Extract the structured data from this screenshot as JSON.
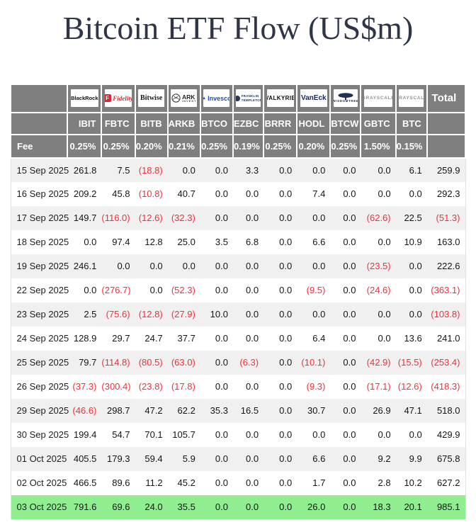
{
  "title": "Bitcoin ETF Flow (US$m)",
  "colors": {
    "title_navy": "#2f3547",
    "header_gray": "#7f7f7f",
    "stripe_gray": "#f0f0f0",
    "negative_red": "#fa2c37",
    "highlight_green": "#90ee90",
    "fidelity_red": "#d7282f",
    "invesco_blue": "#1a52bd",
    "vaneck_navy": "#16295e",
    "wisdomtree_navy": "#20304e",
    "grayscale_gray": "#8d9298"
  },
  "chart_data": {
    "type": "table",
    "title": "Bitcoin ETF Flow (US$m)",
    "fee_row_label": "Fee",
    "total_label": "Total",
    "providers": [
      {
        "name": "BlackRock",
        "logo_text": "BlackRock",
        "ticker": "IBIT",
        "fee": "0.25%",
        "style": "blackrock"
      },
      {
        "name": "Fidelity",
        "logo_text": "Fidelity",
        "ticker": "FBTC",
        "fee": "0.25%",
        "style": "fidelity"
      },
      {
        "name": "Bitwise",
        "logo_text": "Bitwise",
        "ticker": "BITB",
        "fee": "0.20%",
        "style": "bitwise"
      },
      {
        "name": "ARK Invest",
        "logo_text": "ARK",
        "logo_sub": "INVEST",
        "ticker": "ARKB",
        "fee": "0.21%",
        "style": "ark"
      },
      {
        "name": "Invesco",
        "logo_text": "Invesco",
        "ticker": "BTCO",
        "fee": "0.25%",
        "style": "invesco"
      },
      {
        "name": "Franklin Templeton",
        "logo_text": "FRANKLIN",
        "logo_sub": "TEMPLETON",
        "ticker": "EZBC",
        "fee": "0.19%",
        "style": "franklin"
      },
      {
        "name": "Valkyrie",
        "logo_text": "VALKYRIE",
        "ticker": "BRRR",
        "fee": "0.25%",
        "style": "valkyrie"
      },
      {
        "name": "VanEck",
        "logo_text": "VanEck",
        "ticker": "HODL",
        "fee": "0.20%",
        "style": "vaneck"
      },
      {
        "name": "WisdomTree",
        "logo_text": "WISDOMTREE",
        "ticker": "BTCW",
        "fee": "0.25%",
        "style": "wisdomtree"
      },
      {
        "name": "Grayscale",
        "logo_text": "GRAYSCALE",
        "ticker": "GBTC",
        "fee": "1.50%",
        "style": "grayscale"
      },
      {
        "name": "Grayscale",
        "logo_text": "GRAYSCALE",
        "ticker": "BTC",
        "fee": "0.15%",
        "style": "grayscale"
      }
    ],
    "rows": [
      {
        "date": "15 Sep 2025",
        "values": [
          261.8,
          7.5,
          -18.8,
          0.0,
          0.0,
          3.3,
          0.0,
          0.0,
          0.0,
          0.0,
          6.1
        ],
        "total": 259.9
      },
      {
        "date": "16 Sep 2025",
        "values": [
          209.2,
          45.8,
          -10.8,
          40.7,
          0.0,
          0.0,
          0.0,
          7.4,
          0.0,
          0.0,
          0.0
        ],
        "total": 292.3
      },
      {
        "date": "17 Sep 2025",
        "values": [
          149.7,
          -116.0,
          -12.6,
          -32.3,
          0.0,
          0.0,
          0.0,
          0.0,
          0.0,
          -62.6,
          22.5
        ],
        "total": -51.3
      },
      {
        "date": "18 Sep 2025",
        "values": [
          0.0,
          97.4,
          12.8,
          25.0,
          3.5,
          6.8,
          0.0,
          6.6,
          0.0,
          0.0,
          10.9
        ],
        "total": 163.0
      },
      {
        "date": "19 Sep 2025",
        "values": [
          246.1,
          0.0,
          0.0,
          0.0,
          0.0,
          0.0,
          0.0,
          0.0,
          0.0,
          -23.5,
          0.0
        ],
        "total": 222.6
      },
      {
        "date": "22 Sep 2025",
        "values": [
          0.0,
          -276.7,
          0.0,
          -52.3,
          0.0,
          0.0,
          0.0,
          -9.5,
          0.0,
          -24.6,
          0.0
        ],
        "total": -363.1
      },
      {
        "date": "23 Sep 2025",
        "values": [
          2.5,
          -75.6,
          -12.8,
          -27.9,
          10.0,
          0.0,
          0.0,
          0.0,
          0.0,
          0.0,
          0.0
        ],
        "total": -103.8
      },
      {
        "date": "24 Sep 2025",
        "values": [
          128.9,
          29.7,
          24.7,
          37.7,
          0.0,
          0.0,
          0.0,
          6.4,
          0.0,
          0.0,
          13.6
        ],
        "total": 241.0
      },
      {
        "date": "25 Sep 2025",
        "values": [
          79.7,
          -114.8,
          -80.5,
          -63.0,
          0.0,
          -6.3,
          0.0,
          -10.1,
          0.0,
          -42.9,
          -15.5
        ],
        "total": -253.4
      },
      {
        "date": "26 Sep 2025",
        "values": [
          -37.3,
          -300.4,
          -23.8,
          -17.8,
          0.0,
          0.0,
          0.0,
          -9.3,
          0.0,
          -17.1,
          -12.6
        ],
        "total": -418.3
      },
      {
        "date": "29 Sep 2025",
        "values": [
          -46.6,
          298.7,
          47.2,
          62.2,
          35.3,
          16.5,
          0.0,
          30.7,
          0.0,
          26.9,
          47.1
        ],
        "total": 518.0
      },
      {
        "date": "30 Sep 2025",
        "values": [
          199.4,
          54.7,
          70.1,
          105.7,
          0.0,
          0.0,
          0.0,
          0.0,
          0.0,
          0.0,
          0.0
        ],
        "total": 429.9
      },
      {
        "date": "01 Oct 2025",
        "values": [
          405.5,
          179.3,
          59.4,
          5.9,
          0.0,
          0.0,
          0.0,
          6.6,
          0.0,
          9.2,
          9.9
        ],
        "total": 675.8
      },
      {
        "date": "02 Oct 2025",
        "values": [
          466.5,
          89.6,
          11.2,
          45.2,
          0.0,
          0.0,
          0.0,
          1.7,
          0.0,
          2.8,
          10.2
        ],
        "total": 627.2
      },
      {
        "date": "03 Oct 2025",
        "values": [
          791.6,
          69.6,
          24.0,
          35.5,
          0.0,
          0.0,
          0.0,
          26.0,
          0.0,
          18.3,
          20.1
        ],
        "total": 985.1,
        "highlight": true
      }
    ]
  }
}
